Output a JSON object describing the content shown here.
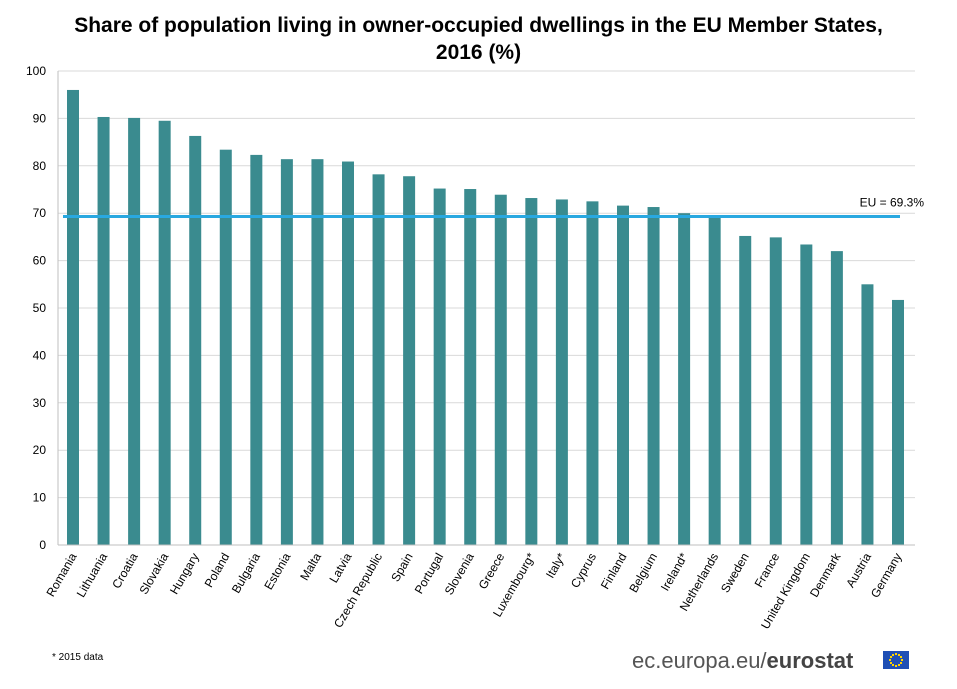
{
  "chart_data": {
    "type": "bar",
    "title": "Share of population living in owner-occupied dwellings in the EU Member States, 2016 (%)",
    "title_lines": [
      "Share of population living in owner-occupied dwellings in the EU Member States,",
      "2016 (%)"
    ],
    "categories": [
      "Romania",
      "Lithuania",
      "Croatia",
      "Slovakia",
      "Hungary",
      "Poland",
      "Bulgaria",
      "Estonia",
      "Malta",
      "Latvia",
      "Czech Republic",
      "Spain",
      "Portugal",
      "Slovenia",
      "Greece",
      "Luxembourg*",
      "Italy*",
      "Cyprus",
      "Finland",
      "Belgium",
      "Ireland*",
      "Netherlands",
      "Sweden",
      "France",
      "United Kingdom",
      "Denmark",
      "Austria",
      "Germany"
    ],
    "values": [
      96.0,
      90.3,
      90.1,
      89.5,
      86.3,
      83.4,
      82.3,
      81.4,
      81.4,
      80.9,
      78.2,
      77.8,
      75.2,
      75.1,
      73.9,
      73.2,
      72.9,
      72.5,
      71.6,
      71.3,
      70.0,
      69.4,
      65.2,
      64.9,
      63.4,
      62.0,
      55.0,
      51.7
    ],
    "ylim": [
      0,
      100
    ],
    "yticks": [
      0,
      10,
      20,
      30,
      40,
      50,
      60,
      70,
      80,
      90,
      100
    ],
    "grid": true,
    "bar_color": "#3a8b8f",
    "reference_line": {
      "value": 69.3,
      "label": "EU = 69.3%",
      "color": "#29a8e0"
    },
    "footnote": "* 2015 data"
  },
  "footer": {
    "source_prefix": "ec.europa.eu/",
    "source_brand": "eurostat"
  }
}
